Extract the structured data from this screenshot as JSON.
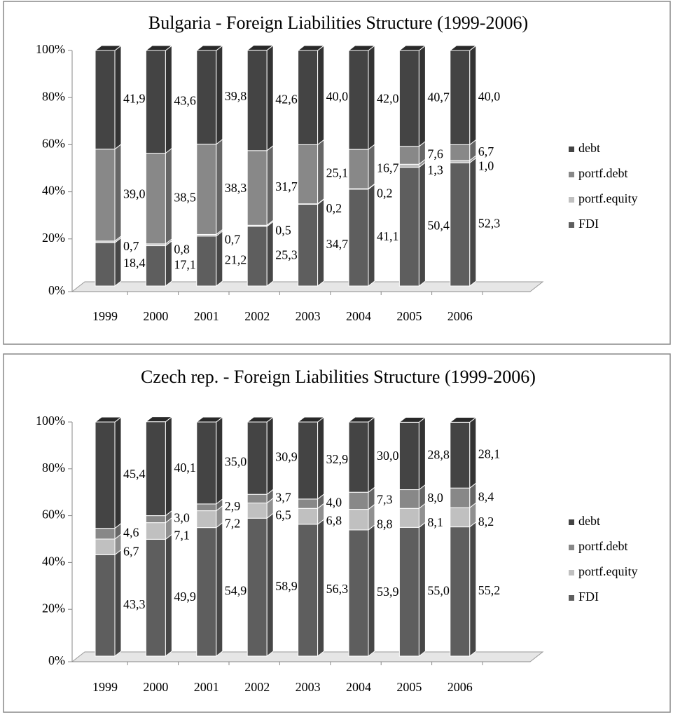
{
  "chart_data": [
    {
      "type": "bar",
      "stacked": true,
      "title": "Bulgaria - Foreign Liabilities Structure (1999-2006)",
      "categories": [
        "1999",
        "2000",
        "2001",
        "2002",
        "2003",
        "2004",
        "2005",
        "2006"
      ],
      "series": [
        {
          "name": "FDI",
          "color": "#5e5e5e",
          "values": [
            18.4,
            17.1,
            21.2,
            25.3,
            34.7,
            41.1,
            50.4,
            52.3
          ],
          "value_labels": [
            "18,4",
            "17,1",
            "21,2",
            "25,3",
            "34,7",
            "41,1",
            "50,4",
            "52,3"
          ]
        },
        {
          "name": "portf.equity",
          "color": "#c0c0c0",
          "values": [
            0.7,
            0.8,
            0.7,
            0.5,
            0.2,
            0.2,
            1.3,
            1.0
          ],
          "value_labels": [
            "0,7",
            "0,8",
            "0,7",
            "0,5",
            "0,2",
            "0,2",
            "1,3",
            "1,0"
          ]
        },
        {
          "name": "portf.debt",
          "color": "#888888",
          "values": [
            39.0,
            38.5,
            38.3,
            31.7,
            25.1,
            16.7,
            7.6,
            6.7
          ],
          "value_labels": [
            "39,0",
            "38,5",
            "38,3",
            "31,7",
            "25,1",
            "16,7",
            "7,6",
            "6,7"
          ]
        },
        {
          "name": "debt",
          "color": "#444444",
          "values": [
            41.9,
            43.6,
            39.8,
            42.6,
            40.0,
            42.0,
            40.7,
            40.0
          ],
          "value_labels": [
            "41,9",
            "43,6",
            "39,8",
            "42,6",
            "40,0",
            "42,0",
            "40,7",
            "40,0"
          ]
        }
      ],
      "ylim": [
        0,
        100
      ],
      "yticks": [
        {
          "value": 0,
          "label": "0%"
        },
        {
          "value": 20,
          "label": "20%"
        },
        {
          "value": 40,
          "label": "40%"
        },
        {
          "value": 60,
          "label": "60%"
        },
        {
          "value": 80,
          "label": "80%"
        },
        {
          "value": 100,
          "label": "100%"
        }
      ],
      "legend": "right"
    },
    {
      "type": "bar",
      "stacked": true,
      "title": "Czech rep. - Foreign Liabilities Structure (1999-2006)",
      "categories": [
        "1999",
        "2000",
        "2001",
        "2002",
        "2003",
        "2004",
        "2005",
        "2006"
      ],
      "series": [
        {
          "name": "FDI",
          "color": "#5e5e5e",
          "values": [
            43.3,
            49.9,
            54.9,
            58.9,
            56.3,
            53.9,
            55.0,
            55.2
          ],
          "value_labels": [
            "43,3",
            "49,9",
            "54,9",
            "58,9",
            "56,3",
            "53,9",
            "55,0",
            "55,2"
          ]
        },
        {
          "name": "portf.equity",
          "color": "#c0c0c0",
          "values": [
            6.7,
            7.1,
            7.2,
            6.5,
            6.8,
            8.8,
            8.1,
            8.2
          ],
          "value_labels": [
            "6,7",
            "7,1",
            "7,2",
            "6,5",
            "6,8",
            "8,8",
            "8,1",
            "8,2"
          ]
        },
        {
          "name": "portf.debt",
          "color": "#888888",
          "values": [
            4.6,
            3.0,
            2.9,
            3.7,
            4.0,
            7.3,
            8.0,
            8.4
          ],
          "value_labels": [
            "4,6",
            "3,0",
            "2,9",
            "3,7",
            "4,0",
            "7,3",
            "8,0",
            "8,4"
          ]
        },
        {
          "name": "debt",
          "color": "#444444",
          "values": [
            45.4,
            40.1,
            35.0,
            30.9,
            32.9,
            30.0,
            28.8,
            28.1
          ],
          "value_labels": [
            "45,4",
            "40,1",
            "35,0",
            "30,9",
            "32,9",
            "30,0",
            "28,8",
            "28,1"
          ]
        }
      ],
      "ylim": [
        0,
        100
      ],
      "yticks": [
        {
          "value": 0,
          "label": "0%"
        },
        {
          "value": 20,
          "label": "20%"
        },
        {
          "value": 40,
          "label": "40%"
        },
        {
          "value": 60,
          "label": "60%"
        },
        {
          "value": 80,
          "label": "80%"
        },
        {
          "value": 100,
          "label": "100%"
        }
      ],
      "legend": "right"
    }
  ]
}
